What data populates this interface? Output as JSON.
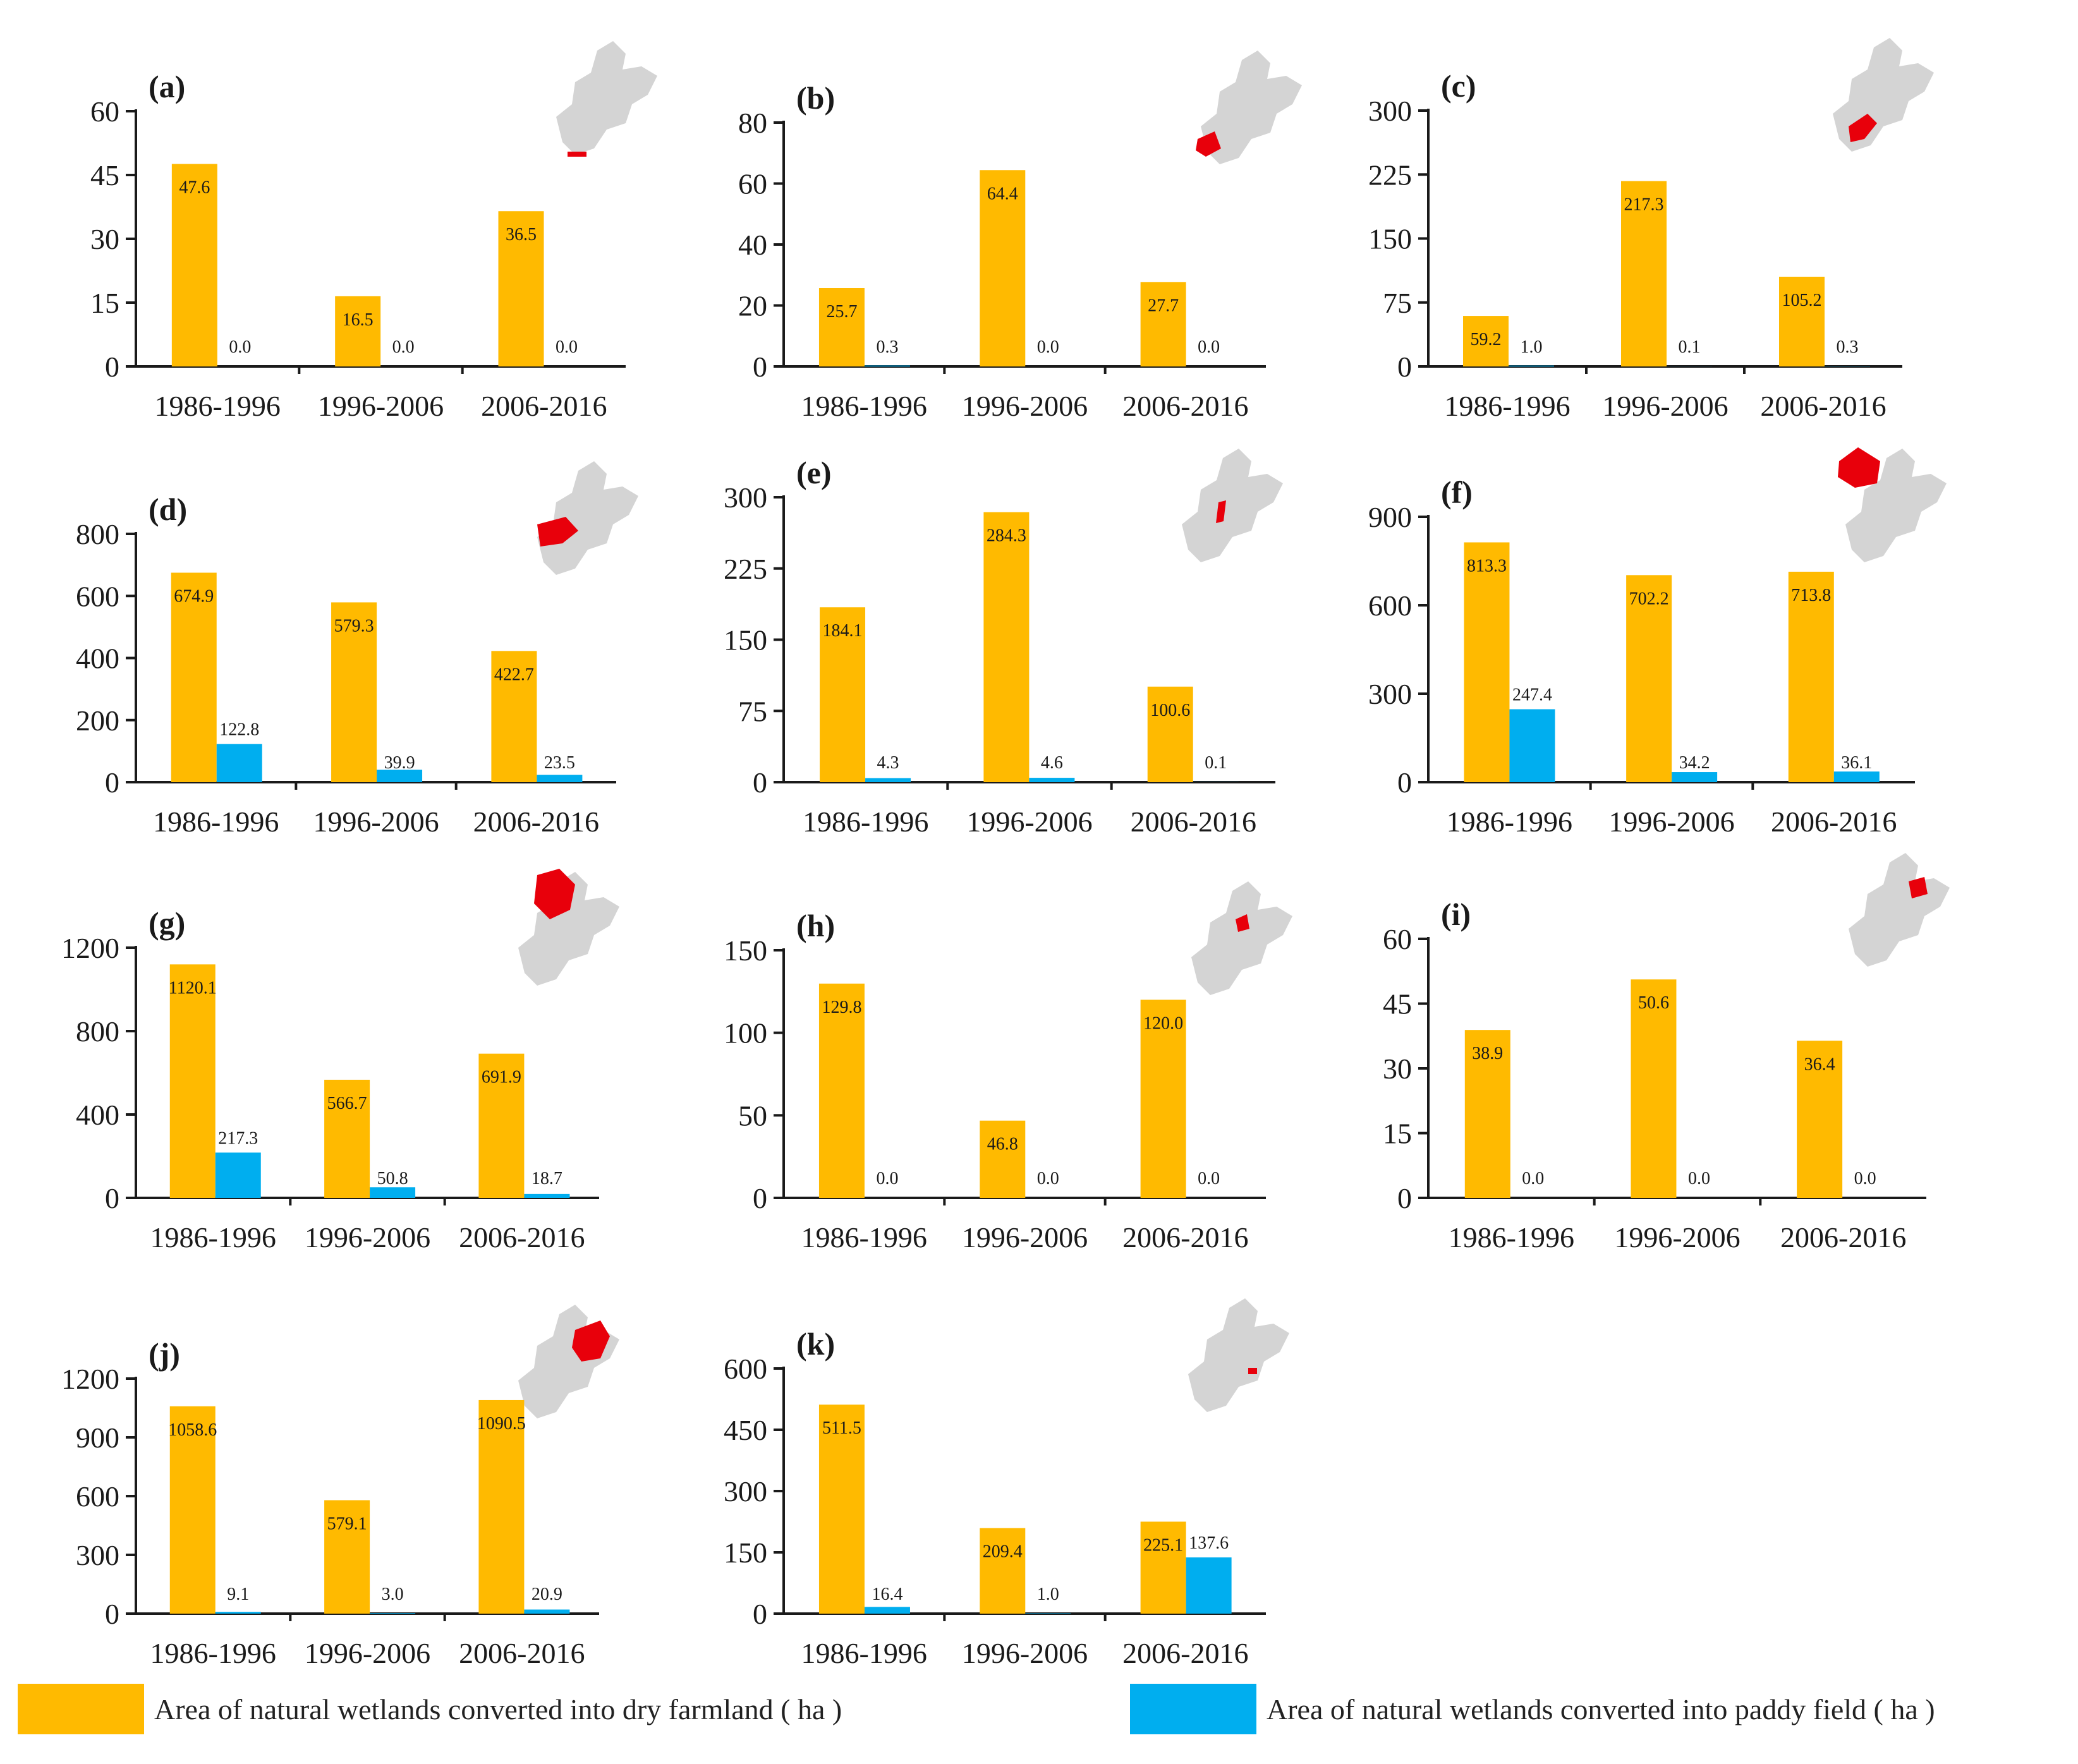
{
  "colors": {
    "dry": "#FFBA00",
    "paddy": "#00AEEF",
    "map_gray": "#D4D4D4",
    "map_red": "#E8000B",
    "axis": "#1a1a1a",
    "text": "#1a1a1a"
  },
  "legend": {
    "dry_label": "Area of natural wetlands converted into dry farmland ( ha )",
    "paddy_label": "Area of natural wetlands converted into paddy field ( ha )"
  },
  "chart_data": [
    {
      "type": "bar",
      "panel": "(a)",
      "categories": [
        "1986-1996",
        "1996-2006",
        "2006-2016"
      ],
      "series": [
        {
          "name": "dry farmland",
          "values": [
            47.6,
            16.5,
            36.5
          ],
          "labels": [
            "47.6",
            "16.5",
            "36.5"
          ]
        },
        {
          "name": "paddy field",
          "values": [
            0.0,
            0.0,
            0.0
          ],
          "labels": [
            "0.0",
            "0.0",
            "0.0"
          ]
        }
      ],
      "ylim": [
        0,
        60
      ],
      "yticks": [
        "0",
        "15",
        "30",
        "45",
        "60"
      ],
      "map_icon": "region-a-map-icon"
    },
    {
      "type": "bar",
      "panel": "(b)",
      "categories": [
        "1986-1996",
        "1996-2006",
        "2006-2016"
      ],
      "series": [
        {
          "name": "dry farmland",
          "values": [
            25.7,
            64.4,
            27.7
          ],
          "labels": [
            "25.7",
            "64.4",
            "27.7"
          ]
        },
        {
          "name": "paddy field",
          "values": [
            0.3,
            0.0,
            0.0
          ],
          "labels": [
            "0.3",
            "0.0",
            "0.0"
          ]
        }
      ],
      "ylim": [
        0,
        80
      ],
      "yticks": [
        "0",
        "20",
        "40",
        "60",
        "80"
      ],
      "map_icon": "region-b-map-icon"
    },
    {
      "type": "bar",
      "panel": "(c)",
      "categories": [
        "1986-1996",
        "1996-2006",
        "2006-2016"
      ],
      "series": [
        {
          "name": "dry farmland",
          "values": [
            59.2,
            217.3,
            105.2
          ],
          "labels": [
            "59.2",
            "217.3",
            "105.2"
          ]
        },
        {
          "name": "paddy field",
          "values": [
            1.0,
            0.1,
            0.3
          ],
          "labels": [
            "1.0",
            "0.1",
            "0.3"
          ]
        }
      ],
      "ylim": [
        0,
        300
      ],
      "yticks": [
        "0",
        "75",
        "150",
        "225",
        "300"
      ],
      "map_icon": "region-c-map-icon"
    },
    {
      "type": "bar",
      "panel": "(d)",
      "categories": [
        "1986-1996",
        "1996-2006",
        "2006-2016"
      ],
      "series": [
        {
          "name": "dry farmland",
          "values": [
            674.9,
            579.3,
            422.7
          ],
          "labels": [
            "674.9",
            "579.3",
            "422.7"
          ]
        },
        {
          "name": "paddy field",
          "values": [
            122.8,
            39.9,
            23.5
          ],
          "labels": [
            "122.8",
            "39.9",
            "23.5"
          ]
        }
      ],
      "ylim": [
        0,
        800
      ],
      "yticks": [
        "0",
        "200",
        "400",
        "600",
        "800"
      ],
      "map_icon": "region-d-map-icon"
    },
    {
      "type": "bar",
      "panel": "(e)",
      "categories": [
        "1986-1996",
        "1996-2006",
        "2006-2016"
      ],
      "series": [
        {
          "name": "dry farmland",
          "values": [
            184.1,
            284.3,
            100.6
          ],
          "labels": [
            "184.1",
            "284.3",
            "100.6"
          ]
        },
        {
          "name": "paddy field",
          "values": [
            4.3,
            4.6,
            0.1
          ],
          "labels": [
            "4.3",
            "4.6",
            "0.1"
          ]
        }
      ],
      "ylim": [
        0,
        300
      ],
      "yticks": [
        "0",
        "75",
        "150",
        "225",
        "300"
      ],
      "map_icon": "region-e-map-icon"
    },
    {
      "type": "bar",
      "panel": "(f)",
      "categories": [
        "1986-1996",
        "1996-2006",
        "2006-2016"
      ],
      "series": [
        {
          "name": "dry farmland",
          "values": [
            813.3,
            702.2,
            713.8
          ],
          "labels": [
            "813.3",
            "702.2",
            "713.8"
          ]
        },
        {
          "name": "paddy field",
          "values": [
            247.4,
            34.2,
            36.1
          ],
          "labels": [
            "247.4",
            "34.2",
            "36.1"
          ]
        }
      ],
      "ylim": [
        0,
        900
      ],
      "yticks": [
        "0",
        "300",
        "600",
        "900"
      ],
      "map_icon": "region-f-map-icon"
    },
    {
      "type": "bar",
      "panel": "(g)",
      "categories": [
        "1986-1996",
        "1996-2006",
        "2006-2016"
      ],
      "series": [
        {
          "name": "dry farmland",
          "values": [
            1120.1,
            566.7,
            691.9
          ],
          "labels": [
            "1120.1",
            "566.7",
            "691.9"
          ]
        },
        {
          "name": "paddy field",
          "values": [
            217.3,
            50.8,
            18.7
          ],
          "labels": [
            "217.3",
            "50.8",
            "18.7"
          ]
        }
      ],
      "ylim": [
        0,
        1200
      ],
      "yticks": [
        "0",
        "400",
        "800",
        "1200"
      ],
      "map_icon": "region-g-map-icon"
    },
    {
      "type": "bar",
      "panel": "(h)",
      "categories": [
        "1986-1996",
        "1996-2006",
        "2006-2016"
      ],
      "series": [
        {
          "name": "dry farmland",
          "values": [
            129.8,
            46.8,
            120.0
          ],
          "labels": [
            "129.8",
            "46.8",
            "120.0"
          ]
        },
        {
          "name": "paddy field",
          "values": [
            0.0,
            0.0,
            0.0
          ],
          "labels": [
            "0.0",
            "0.0",
            "0.0"
          ]
        }
      ],
      "ylim": [
        0,
        150
      ],
      "yticks": [
        "0",
        "50",
        "100",
        "150"
      ],
      "map_icon": "region-h-map-icon"
    },
    {
      "type": "bar",
      "panel": "(i)",
      "categories": [
        "1986-1996",
        "1996-2006",
        "2006-2016"
      ],
      "series": [
        {
          "name": "dry farmland",
          "values": [
            38.9,
            50.6,
            36.4
          ],
          "labels": [
            "38.9",
            "50.6",
            "36.4"
          ]
        },
        {
          "name": "paddy field",
          "values": [
            0.0,
            0.0,
            0.0
          ],
          "labels": [
            "0.0",
            "0.0",
            "0.0"
          ]
        }
      ],
      "ylim": [
        0,
        60
      ],
      "yticks": [
        "0",
        "15",
        "30",
        "45",
        "60"
      ],
      "map_icon": "region-i-map-icon"
    },
    {
      "type": "bar",
      "panel": "(j)",
      "categories": [
        "1986-1996",
        "1996-2006",
        "2006-2016"
      ],
      "series": [
        {
          "name": "dry farmland",
          "values": [
            1058.6,
            579.1,
            1090.5
          ],
          "labels": [
            "1058.6",
            "579.1",
            "1090.5"
          ]
        },
        {
          "name": "paddy field",
          "values": [
            9.1,
            3.0,
            20.9
          ],
          "labels": [
            "9.1",
            "3.0",
            "20.9"
          ]
        }
      ],
      "ylim": [
        0,
        1200
      ],
      "yticks": [
        "0",
        "300",
        "600",
        "900",
        "1200"
      ],
      "map_icon": "region-j-map-icon"
    },
    {
      "type": "bar",
      "panel": "(k)",
      "categories": [
        "1986-1996",
        "1996-2006",
        "2006-2016"
      ],
      "series": [
        {
          "name": "dry farmland",
          "values": [
            511.5,
            209.4,
            225.1
          ],
          "labels": [
            "511.5",
            "209.4",
            "225.1"
          ]
        },
        {
          "name": "paddy field",
          "values": [
            16.4,
            1.0,
            137.6
          ],
          "labels": [
            "16.4",
            "1.0",
            "137.6"
          ]
        }
      ],
      "ylim": [
        0,
        600
      ],
      "yticks": [
        "0",
        "150",
        "300",
        "450",
        "600"
      ],
      "map_icon": "region-k-map-icon"
    }
  ]
}
